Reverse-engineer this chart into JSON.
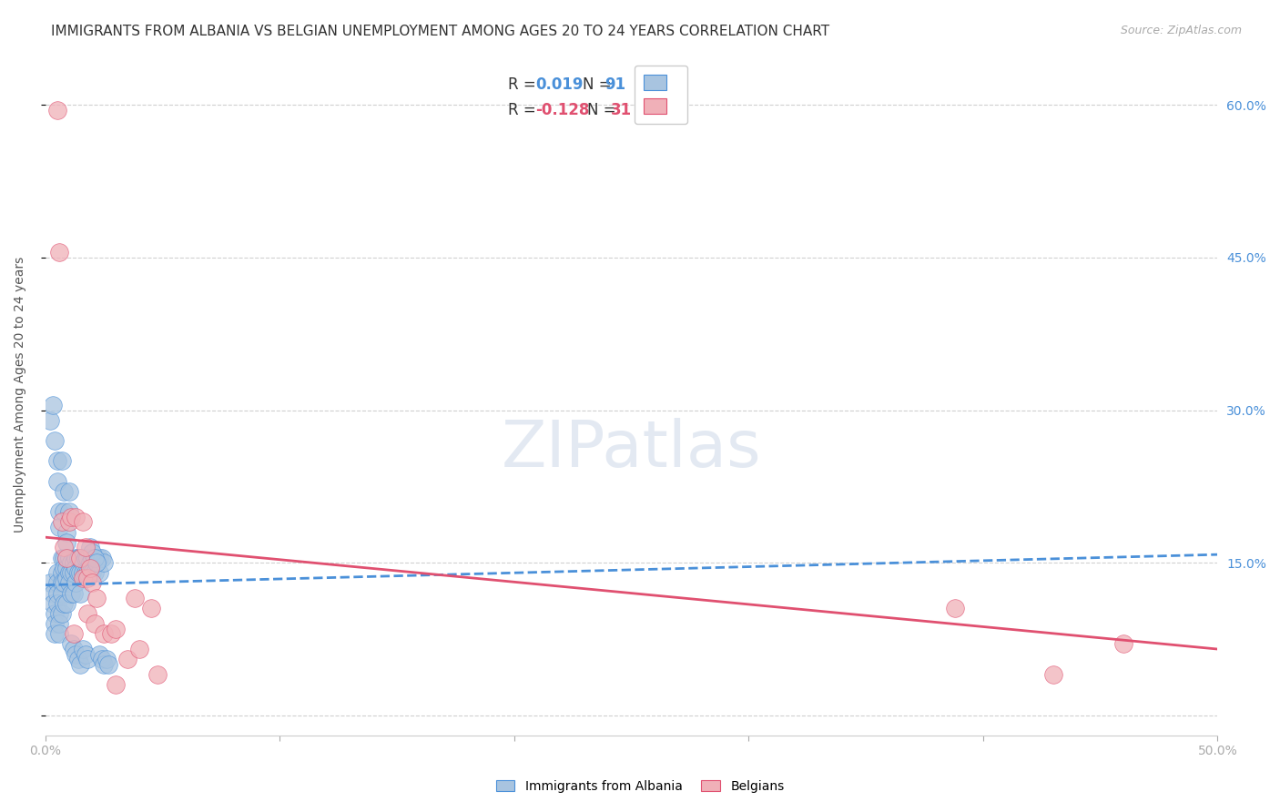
{
  "title": "IMMIGRANTS FROM ALBANIA VS BELGIAN UNEMPLOYMENT AMONG AGES 20 TO 24 YEARS CORRELATION CHART",
  "source": "Source: ZipAtlas.com",
  "ylabel": "Unemployment Among Ages 20 to 24 years",
  "xlim": [
    0.0,
    0.5
  ],
  "ylim": [
    -0.02,
    0.65
  ],
  "yticks": [
    0.0,
    0.15,
    0.3,
    0.45,
    0.6
  ],
  "ytick_labels": [
    "",
    "15.0%",
    "30.0%",
    "45.0%",
    "60.0%"
  ],
  "blue_color": "#a8c4e0",
  "blue_line_color": "#4a90d9",
  "pink_color": "#f0b0b8",
  "pink_line_color": "#e05070",
  "blue_scatter_x": [
    0.002,
    0.003,
    0.003,
    0.004,
    0.004,
    0.004,
    0.005,
    0.005,
    0.005,
    0.005,
    0.006,
    0.006,
    0.006,
    0.007,
    0.007,
    0.007,
    0.007,
    0.007,
    0.008,
    0.008,
    0.008,
    0.008,
    0.009,
    0.009,
    0.009,
    0.009,
    0.01,
    0.01,
    0.01,
    0.011,
    0.011,
    0.011,
    0.012,
    0.012,
    0.012,
    0.013,
    0.013,
    0.013,
    0.014,
    0.014,
    0.015,
    0.015,
    0.015,
    0.016,
    0.016,
    0.017,
    0.017,
    0.018,
    0.018,
    0.019,
    0.019,
    0.02,
    0.02,
    0.021,
    0.021,
    0.022,
    0.023,
    0.023,
    0.024,
    0.025,
    0.002,
    0.003,
    0.004,
    0.005,
    0.005,
    0.006,
    0.006,
    0.007,
    0.008,
    0.008,
    0.009,
    0.009,
    0.01,
    0.01,
    0.011,
    0.012,
    0.013,
    0.014,
    0.015,
    0.016,
    0.017,
    0.018,
    0.019,
    0.02,
    0.021,
    0.022,
    0.023,
    0.024,
    0.025,
    0.026,
    0.027
  ],
  "blue_scatter_y": [
    0.13,
    0.12,
    0.11,
    0.1,
    0.09,
    0.08,
    0.14,
    0.13,
    0.12,
    0.11,
    0.1,
    0.09,
    0.08,
    0.155,
    0.14,
    0.13,
    0.12,
    0.1,
    0.155,
    0.145,
    0.13,
    0.11,
    0.155,
    0.145,
    0.135,
    0.11,
    0.155,
    0.14,
    0.13,
    0.15,
    0.14,
    0.12,
    0.15,
    0.14,
    0.12,
    0.155,
    0.145,
    0.13,
    0.155,
    0.14,
    0.155,
    0.14,
    0.12,
    0.15,
    0.14,
    0.155,
    0.14,
    0.155,
    0.14,
    0.15,
    0.14,
    0.155,
    0.14,
    0.155,
    0.14,
    0.155,
    0.155,
    0.14,
    0.155,
    0.15,
    0.29,
    0.305,
    0.27,
    0.25,
    0.23,
    0.2,
    0.185,
    0.25,
    0.22,
    0.2,
    0.18,
    0.17,
    0.22,
    0.2,
    0.07,
    0.065,
    0.06,
    0.055,
    0.05,
    0.065,
    0.06,
    0.055,
    0.165,
    0.16,
    0.155,
    0.15,
    0.06,
    0.055,
    0.05,
    0.055,
    0.05
  ],
  "pink_scatter_x": [
    0.005,
    0.006,
    0.007,
    0.008,
    0.009,
    0.01,
    0.011,
    0.012,
    0.013,
    0.015,
    0.016,
    0.016,
    0.017,
    0.018,
    0.018,
    0.019,
    0.02,
    0.021,
    0.022,
    0.025,
    0.028,
    0.03,
    0.03,
    0.035,
    0.038,
    0.04,
    0.045,
    0.048,
    0.388,
    0.43,
    0.46
  ],
  "pink_scatter_y": [
    0.595,
    0.455,
    0.19,
    0.165,
    0.155,
    0.19,
    0.195,
    0.08,
    0.195,
    0.155,
    0.19,
    0.135,
    0.165,
    0.135,
    0.1,
    0.145,
    0.13,
    0.09,
    0.115,
    0.08,
    0.08,
    0.085,
    0.03,
    0.055,
    0.115,
    0.065,
    0.105,
    0.04,
    0.105,
    0.04,
    0.07
  ],
  "blue_trend_x": [
    0.0,
    0.5
  ],
  "blue_trend_y": [
    0.128,
    0.158
  ],
  "pink_trend_x": [
    0.0,
    0.5
  ],
  "pink_trend_y": [
    0.175,
    0.065
  ],
  "grid_color": "#d0d0d0",
  "background_color": "#ffffff",
  "title_fontsize": 11,
  "label_fontsize": 10,
  "tick_fontsize": 10
}
